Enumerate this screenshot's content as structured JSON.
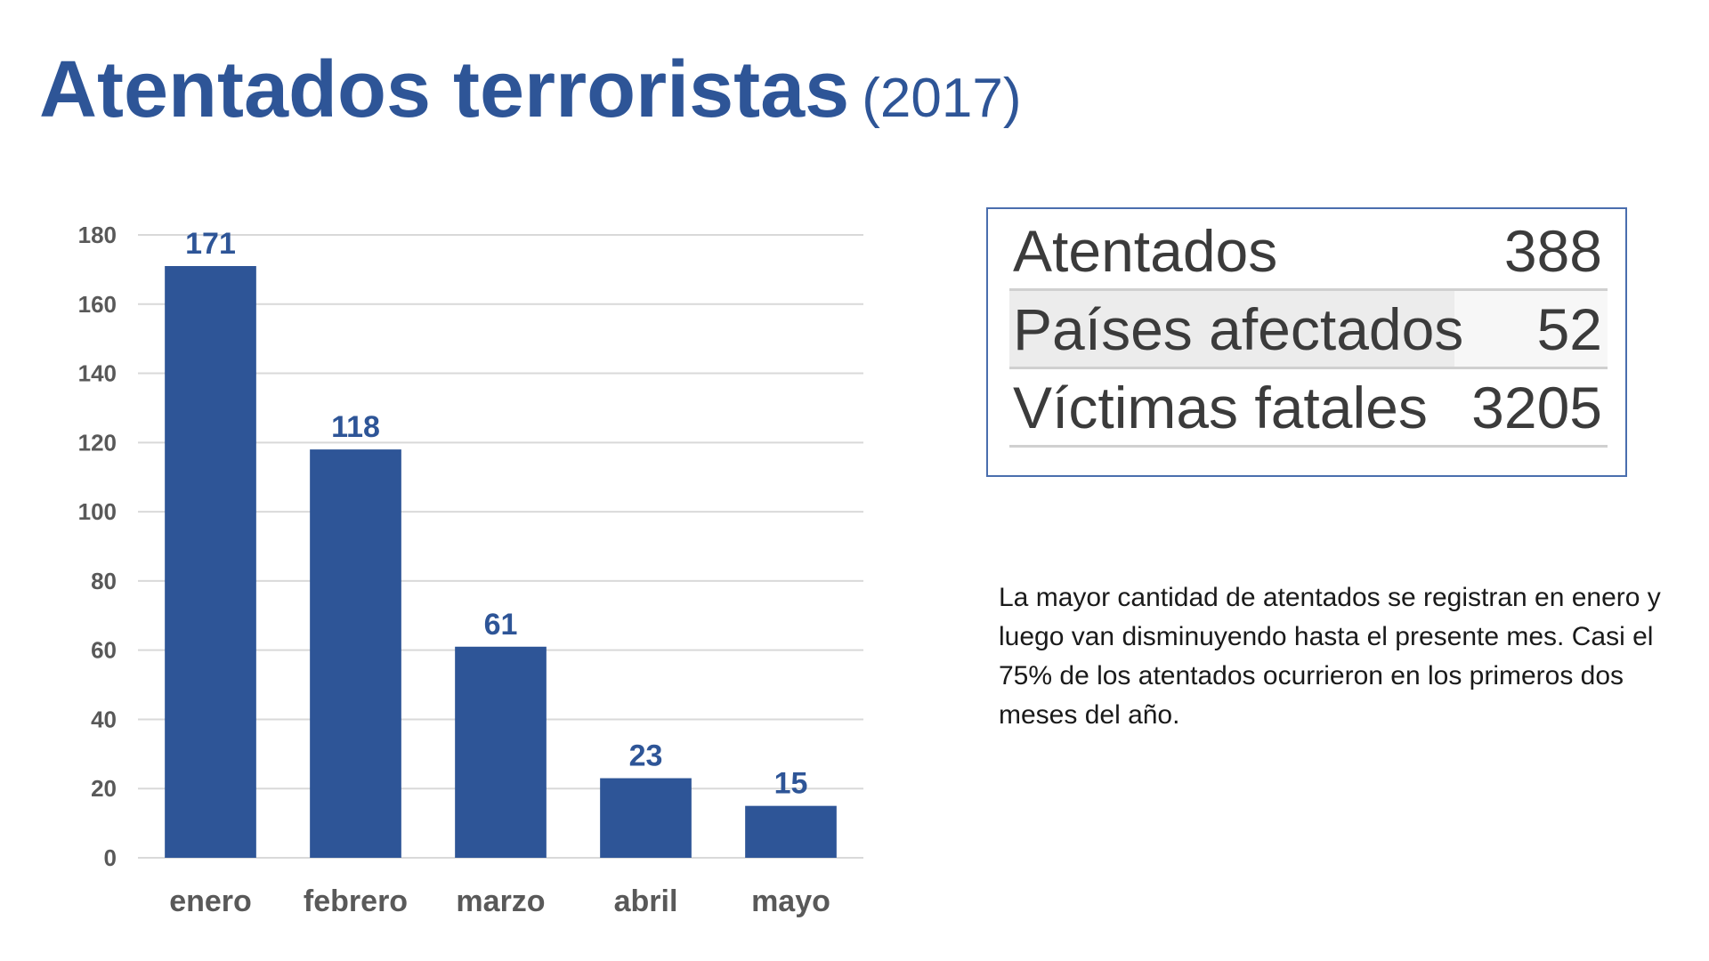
{
  "title": {
    "main": "Atentados terroristas",
    "year": "(2017)"
  },
  "chart_data": {
    "type": "bar",
    "categories": [
      "enero",
      "febrero",
      "marzo",
      "abril",
      "mayo"
    ],
    "values": [
      171,
      118,
      61,
      23,
      15
    ],
    "ylim": [
      0,
      180
    ],
    "yticks": [
      0,
      20,
      40,
      60,
      80,
      100,
      120,
      140,
      160,
      180
    ],
    "grid": true,
    "data_labels": true,
    "title": "",
    "xlabel": "",
    "ylabel": ""
  },
  "colors": {
    "bar": "#2E5597",
    "title": "#2E5597",
    "grid": "#d9d9d9",
    "axis_text": "#595959"
  },
  "stats": [
    {
      "label": "Atentados",
      "value": "388"
    },
    {
      "label": "Países afectados",
      "value": "52"
    },
    {
      "label": "Víctimas fatales",
      "value": "3205"
    }
  ],
  "note": "La mayor cantidad de atentados se registran en enero y luego van disminuyendo hasta el presente mes. Casi el 75% de los atentados ocurrieron en los primeros dos meses del año."
}
